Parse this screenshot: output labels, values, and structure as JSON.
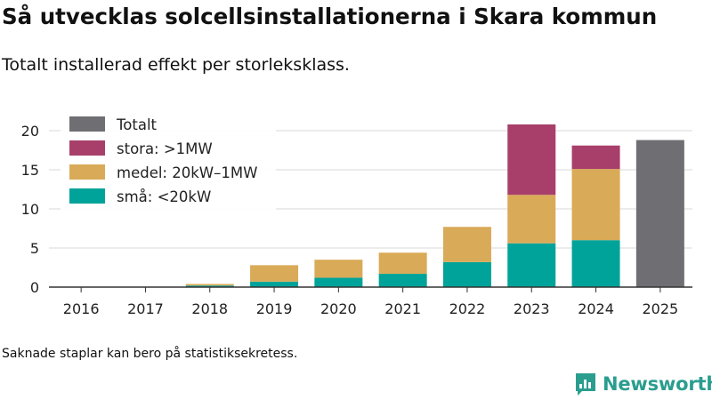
{
  "chart_data": {
    "type": "bar",
    "stacked": true,
    "title": "Så utvecklas solcellsinstallationerna i Skara kommun",
    "subtitle": "Totalt installerad effekt per storleksklass.",
    "categories": [
      "2016",
      "2017",
      "2018",
      "2019",
      "2020",
      "2021",
      "2022",
      "2023",
      "2024",
      "2025"
    ],
    "series": [
      {
        "name": "små: <20kW",
        "color": "#00a39a",
        "values": [
          0,
          0,
          0.2,
          0.7,
          1.2,
          1.7,
          3.2,
          5.6,
          6.0,
          null
        ]
      },
      {
        "name": "medel: 20kW–1MW",
        "color": "#d9aa57",
        "values": [
          0,
          0,
          0.2,
          2.1,
          2.3,
          2.7,
          4.5,
          6.2,
          9.1,
          null
        ]
      },
      {
        "name": "stora: >1MW",
        "color": "#a83f6b",
        "values": [
          0,
          0,
          0,
          0,
          0,
          0,
          0,
          9.0,
          3.0,
          null
        ]
      },
      {
        "name": "Totalt",
        "color": "#6f6e73",
        "values": [
          null,
          null,
          null,
          null,
          null,
          null,
          null,
          null,
          null,
          18.8
        ]
      }
    ],
    "legend_order": [
      "Totalt",
      "stora: >1MW",
      "medel: 20kW–1MW",
      "små: <20kW"
    ],
    "yticks": [
      0,
      5,
      10,
      15,
      20
    ],
    "ylim": [
      0,
      22
    ],
    "xlabel": "",
    "ylabel": "",
    "grid": true,
    "legend_position": "top-left"
  },
  "footnote": "Saknade staplar kan bero på statistiksekretess.",
  "brand": {
    "name": "Newsworthy",
    "color": "#2a9d8f"
  }
}
